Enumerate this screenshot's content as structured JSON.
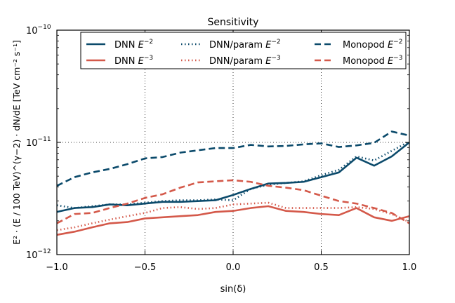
{
  "chart_data": {
    "type": "line",
    "title": "Sensitivity",
    "xlabel": "sin(δ)",
    "ylabel": "E² · (E / 100 TeV)^(γ−2) · dN/dE  [TeV cm⁻² s⁻¹]",
    "xlim": [
      -1.0,
      1.0
    ],
    "ylim": [
      1e-12,
      1e-10
    ],
    "yscale": "log",
    "grid": true,
    "legend_position": "top-right",
    "x_ticks": [
      {
        "value": -1.0,
        "label": "−1.0"
      },
      {
        "value": -0.5,
        "label": "−0.5"
      },
      {
        "value": 0.0,
        "label": "0.0"
      },
      {
        "value": 0.5,
        "label": "0.5"
      },
      {
        "value": 1.0,
        "label": "1.0"
      }
    ],
    "y_ticks": [
      {
        "value": 1e-12,
        "base": "10",
        "exp": "−12"
      },
      {
        "value": 1e-11,
        "base": "10",
        "exp": "−11"
      },
      {
        "value": 1e-10,
        "base": "10",
        "exp": "−10"
      }
    ],
    "x": [
      -1.0,
      -0.9,
      -0.8,
      -0.7,
      -0.6,
      -0.5,
      -0.4,
      -0.3,
      -0.2,
      -0.1,
      0.0,
      0.1,
      0.2,
      0.3,
      0.4,
      0.5,
      0.6,
      0.7,
      0.8,
      0.9,
      1.0
    ],
    "series": [
      {
        "name": "DNN",
        "exp": "−2",
        "color": "#0b4a6b",
        "style": "solid",
        "values": [
          2.4e-12,
          2.6e-12,
          2.65e-12,
          2.8e-12,
          2.75e-12,
          2.85e-12,
          2.95e-12,
          2.95e-12,
          3e-12,
          3.05e-12,
          3.4e-12,
          3.85e-12,
          4.3e-12,
          4.35e-12,
          4.45e-12,
          4.9e-12,
          5.4e-12,
          7.3e-12,
          6.2e-12,
          7.5e-12,
          1e-11
        ]
      },
      {
        "name": "DNN/param",
        "exp": "−2",
        "color": "#0b4a6b",
        "style": "dotted",
        "values": [
          2.75e-12,
          2.6e-12,
          2.7e-12,
          2.8e-12,
          2.8e-12,
          2.9e-12,
          3e-12,
          3.05e-12,
          3.05e-12,
          3.1e-12,
          3.05e-12,
          3.85e-12,
          4.2e-12,
          4.35e-12,
          4.5e-12,
          5.1e-12,
          5.7e-12,
          7.5e-12,
          6.9e-12,
          8.4e-12,
          1.02e-11
        ]
      },
      {
        "name": "Monopod",
        "exp": "−2",
        "color": "#0b4a6b",
        "style": "dashed",
        "values": [
          4.1e-12,
          4.9e-12,
          5.4e-12,
          5.8e-12,
          6.4e-12,
          7.2e-12,
          7.4e-12,
          8.1e-12,
          8.5e-12,
          8.9e-12,
          8.9e-12,
          9.5e-12,
          9.2e-12,
          9.3e-12,
          9.6e-12,
          9.8e-12,
          9.1e-12,
          9.4e-12,
          9.9e-12,
          1.25e-11,
          1.15e-11
        ]
      },
      {
        "name": "DNN",
        "exp": "−3",
        "color": "#d4594a",
        "style": "solid",
        "values": [
          1.5e-12,
          1.6e-12,
          1.75e-12,
          1.9e-12,
          1.95e-12,
          2.1e-12,
          2.15e-12,
          2.2e-12,
          2.25e-12,
          2.4e-12,
          2.45e-12,
          2.6e-12,
          2.7e-12,
          2.45e-12,
          2.4e-12,
          2.3e-12,
          2.25e-12,
          2.6e-12,
          2.15e-12,
          2e-12,
          2.2e-12
        ]
      },
      {
        "name": "DNN/param",
        "exp": "−3",
        "color": "#d4594a",
        "style": "dotted",
        "values": [
          1.65e-12,
          1.75e-12,
          1.9e-12,
          2.05e-12,
          2.2e-12,
          2.35e-12,
          2.6e-12,
          2.65e-12,
          2.55e-12,
          2.6e-12,
          2.8e-12,
          2.85e-12,
          2.9e-12,
          2.6e-12,
          2.6e-12,
          2.6e-12,
          2.6e-12,
          2.65e-12,
          2.55e-12,
          2.3e-12,
          1.95e-12
        ]
      },
      {
        "name": "Monopod",
        "exp": "−3",
        "color": "#d4594a",
        "style": "dashed",
        "values": [
          1.9e-12,
          2.3e-12,
          2.35e-12,
          2.6e-12,
          2.85e-12,
          3.2e-12,
          3.45e-12,
          3.95e-12,
          4.4e-12,
          4.5e-12,
          4.6e-12,
          4.45e-12,
          4.1e-12,
          3.95e-12,
          3.75e-12,
          3.35e-12,
          3e-12,
          2.85e-12,
          2.6e-12,
          2.35e-12,
          1.9e-12
        ]
      }
    ]
  }
}
